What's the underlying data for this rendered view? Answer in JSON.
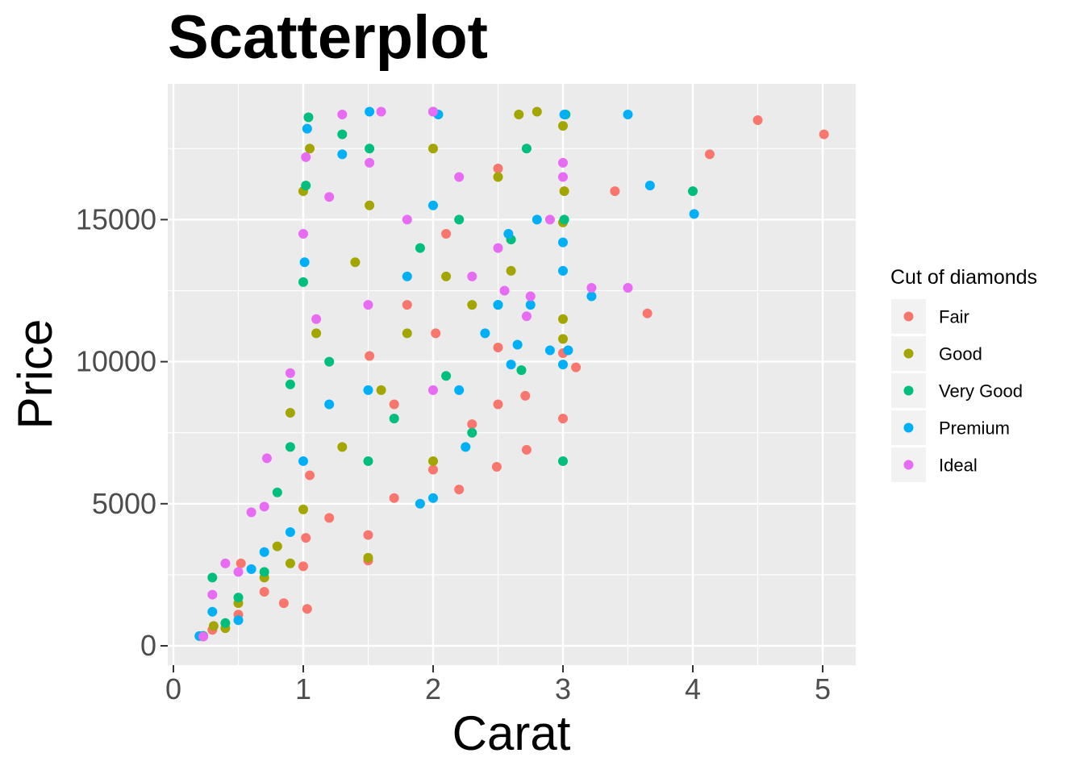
{
  "chart_data": {
    "type": "scatter",
    "title": "Scatterplot",
    "xlabel": "Carat",
    "ylabel": "Price",
    "xlim": [
      0,
      5.2
    ],
    "ylim": [
      0,
      19000
    ],
    "x_ticks": [
      0,
      1,
      2,
      3,
      4,
      5
    ],
    "x_tick_labels": [
      "0",
      "1",
      "2",
      "3",
      "4",
      "5"
    ],
    "y_ticks": [
      0,
      5000,
      10000,
      15000
    ],
    "y_tick_labels": [
      "0",
      "5000",
      "10000",
      "15000"
    ],
    "grid": true,
    "legend": {
      "title": "Cut of diamonds",
      "placement": "right",
      "entries": [
        "Fair",
        "Good",
        "Very Good",
        "Premium",
        "Ideal"
      ]
    },
    "colors": {
      "Fair": "#F8766D",
      "Good": "#A3A500",
      "Very Good": "#00BF7D",
      "Premium": "#00B0F6",
      "Ideal": "#E76BF3"
    },
    "panel_background": "#EBEBEB",
    "grid_color": "#FFFFFF",
    "series": [
      {
        "name": "Fair",
        "points": [
          [
            0.22,
            340
          ],
          [
            0.3,
            560
          ],
          [
            0.5,
            1100
          ],
          [
            0.52,
            2900
          ],
          [
            0.7,
            1900
          ],
          [
            0.85,
            1500
          ],
          [
            1.0,
            2800
          ],
          [
            1.02,
            3800
          ],
          [
            1.03,
            1300
          ],
          [
            1.05,
            6000
          ],
          [
            1.2,
            4500
          ],
          [
            1.5,
            3000
          ],
          [
            1.5,
            3900
          ],
          [
            1.51,
            10200
          ],
          [
            1.7,
            5200
          ],
          [
            1.7,
            8500
          ],
          [
            2.0,
            6200
          ],
          [
            2.02,
            11000
          ],
          [
            2.2,
            5500
          ],
          [
            2.3,
            7800
          ],
          [
            2.5,
            8500
          ],
          [
            2.49,
            6300
          ],
          [
            2.5,
            10500
          ],
          [
            2.71,
            8800
          ],
          [
            2.72,
            6900
          ],
          [
            3.0,
            8000
          ],
          [
            3.0,
            10300
          ],
          [
            3.1,
            9800
          ],
          [
            3.4,
            16000
          ],
          [
            3.65,
            11700
          ],
          [
            4.13,
            17300
          ],
          [
            4.5,
            18500
          ],
          [
            5.01,
            18000
          ],
          [
            2.5,
            16800
          ],
          [
            2.1,
            14500
          ],
          [
            1.8,
            12000
          ]
        ]
      },
      {
        "name": "Good",
        "points": [
          [
            0.23,
            330
          ],
          [
            0.31,
            700
          ],
          [
            0.4,
            620
          ],
          [
            0.5,
            1500
          ],
          [
            0.7,
            2400
          ],
          [
            0.8,
            3500
          ],
          [
            0.9,
            2900
          ],
          [
            0.9,
            8200
          ],
          [
            1.0,
            4800
          ],
          [
            1.0,
            16000
          ],
          [
            1.05,
            17500
          ],
          [
            1.1,
            11000
          ],
          [
            1.3,
            7000
          ],
          [
            1.4,
            13500
          ],
          [
            1.5,
            3100
          ],
          [
            1.51,
            15500
          ],
          [
            1.6,
            9000
          ],
          [
            1.8,
            11000
          ],
          [
            2.0,
            6500
          ],
          [
            2.0,
            17500
          ],
          [
            2.1,
            13000
          ],
          [
            2.3,
            12000
          ],
          [
            2.5,
            16500
          ],
          [
            2.6,
            13200
          ],
          [
            2.66,
            18700
          ],
          [
            2.8,
            18800
          ],
          [
            3.0,
            11500
          ],
          [
            3.0,
            10800
          ],
          [
            3.0,
            14900
          ],
          [
            3.0,
            18300
          ],
          [
            3.01,
            16000
          ]
        ]
      },
      {
        "name": "Very Good",
        "points": [
          [
            0.23,
            350
          ],
          [
            0.3,
            2400
          ],
          [
            0.4,
            800
          ],
          [
            0.5,
            1700
          ],
          [
            0.7,
            2600
          ],
          [
            0.8,
            5400
          ],
          [
            0.9,
            7000
          ],
          [
            0.9,
            9200
          ],
          [
            1.0,
            12800
          ],
          [
            1.02,
            16200
          ],
          [
            1.04,
            18600
          ],
          [
            1.2,
            10000
          ],
          [
            1.3,
            18000
          ],
          [
            1.5,
            6500
          ],
          [
            1.51,
            17500
          ],
          [
            1.7,
            8000
          ],
          [
            1.9,
            14000
          ],
          [
            2.0,
            18800
          ],
          [
            2.1,
            9500
          ],
          [
            2.2,
            15000
          ],
          [
            2.3,
            7500
          ],
          [
            2.5,
            12000
          ],
          [
            2.6,
            14300
          ],
          [
            2.68,
            9700
          ],
          [
            2.72,
            17500
          ],
          [
            3.0,
            6500
          ],
          [
            3.01,
            15000
          ],
          [
            3.02,
            18700
          ],
          [
            4.0,
            16000
          ]
        ]
      },
      {
        "name": "Premium",
        "points": [
          [
            0.2,
            345
          ],
          [
            0.3,
            1200
          ],
          [
            0.5,
            900
          ],
          [
            0.6,
            2700
          ],
          [
            0.7,
            3300
          ],
          [
            0.9,
            4000
          ],
          [
            1.0,
            6500
          ],
          [
            1.01,
            13500
          ],
          [
            1.03,
            18200
          ],
          [
            1.2,
            8500
          ],
          [
            1.3,
            17300
          ],
          [
            1.5,
            9000
          ],
          [
            1.51,
            18800
          ],
          [
            1.8,
            13000
          ],
          [
            1.9,
            5000
          ],
          [
            2.0,
            5200
          ],
          [
            2.0,
            15500
          ],
          [
            2.04,
            18700
          ],
          [
            2.2,
            9000
          ],
          [
            2.4,
            11000
          ],
          [
            2.5,
            12000
          ],
          [
            2.58,
            14500
          ],
          [
            2.6,
            9900
          ],
          [
            2.65,
            10600
          ],
          [
            2.8,
            15000
          ],
          [
            2.9,
            10400
          ],
          [
            3.0,
            9900
          ],
          [
            3.0,
            13200
          ],
          [
            3.0,
            14200
          ],
          [
            3.01,
            18700
          ],
          [
            3.04,
            10400
          ],
          [
            3.22,
            12300
          ],
          [
            3.5,
            18700
          ],
          [
            3.67,
            16200
          ],
          [
            4.01,
            15200
          ],
          [
            2.25,
            7000
          ],
          [
            2.75,
            12000
          ]
        ]
      },
      {
        "name": "Ideal",
        "points": [
          [
            0.23,
            326
          ],
          [
            0.3,
            1800
          ],
          [
            0.4,
            2900
          ],
          [
            0.5,
            2600
          ],
          [
            0.6,
            4700
          ],
          [
            0.7,
            4900
          ],
          [
            0.72,
            6600
          ],
          [
            0.9,
            9600
          ],
          [
            1.0,
            14500
          ],
          [
            1.02,
            17200
          ],
          [
            1.1,
            11500
          ],
          [
            1.2,
            15800
          ],
          [
            1.3,
            18700
          ],
          [
            1.5,
            12000
          ],
          [
            1.51,
            17000
          ],
          [
            1.6,
            18800
          ],
          [
            1.8,
            15000
          ],
          [
            2.0,
            9000
          ],
          [
            2.0,
            18800
          ],
          [
            2.2,
            16500
          ],
          [
            2.3,
            13000
          ],
          [
            2.5,
            14000
          ],
          [
            2.55,
            12500
          ],
          [
            2.72,
            11600
          ],
          [
            2.75,
            12300
          ],
          [
            3.0,
            16500
          ],
          [
            3.0,
            17000
          ],
          [
            3.22,
            12600
          ],
          [
            3.5,
            12600
          ],
          [
            2.9,
            15000
          ]
        ]
      }
    ]
  }
}
